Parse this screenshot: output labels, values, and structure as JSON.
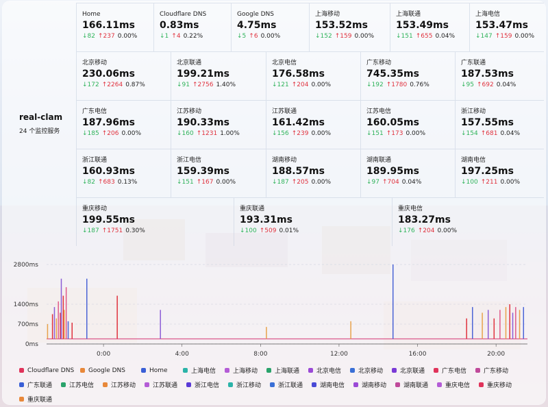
{
  "node": {
    "name": "real-clam",
    "subtitle": "24 个监控服务"
  },
  "rows": [
    [
      {
        "name": "Home",
        "value": "166.11ms",
        "down": "↓82",
        "up": "↑237",
        "pct": "0.00%"
      },
      {
        "name": "Cloudflare DNS",
        "value": "0.83ms",
        "down": "↓1",
        "up": "↑4",
        "pct": "0.22%"
      },
      {
        "name": "Google DNS",
        "value": "4.75ms",
        "down": "↓5",
        "up": "↑6",
        "pct": "0.00%"
      },
      {
        "name": "上海移动",
        "value": "153.52ms",
        "down": "↓152",
        "up": "↑159",
        "pct": "0.00%"
      },
      {
        "name": "上海联通",
        "value": "153.49ms",
        "down": "↓151",
        "up": "↑655",
        "pct": "0.04%"
      },
      {
        "name": "上海电信",
        "value": "153.47ms",
        "down": "↓147",
        "up": "↑159",
        "pct": "0.00%"
      }
    ],
    [
      {
        "name": "北京移动",
        "value": "230.06ms",
        "down": "↓172",
        "up": "↑2264",
        "pct": "0.87%"
      },
      {
        "name": "北京联通",
        "value": "199.21ms",
        "down": "↓91",
        "up": "↑2756",
        "pct": "1.40%"
      },
      {
        "name": "北京电信",
        "value": "176.58ms",
        "down": "↓121",
        "up": "↑204",
        "pct": "0.00%"
      },
      {
        "name": "广东移动",
        "value": "745.35ms",
        "down": "↓192",
        "up": "↑1780",
        "pct": "0.76%"
      },
      {
        "name": "广东联通",
        "value": "187.53ms",
        "down": "↓95",
        "up": "↑692",
        "pct": "0.04%"
      }
    ],
    [
      {
        "name": "广东电信",
        "value": "187.96ms",
        "down": "↓185",
        "up": "↑206",
        "pct": "0.00%"
      },
      {
        "name": "江苏移动",
        "value": "190.33ms",
        "down": "↓160",
        "up": "↑1231",
        "pct": "1.00%"
      },
      {
        "name": "江苏联通",
        "value": "161.42ms",
        "down": "↓156",
        "up": "↑239",
        "pct": "0.00%"
      },
      {
        "name": "江苏电信",
        "value": "160.05ms",
        "down": "↓151",
        "up": "↑173",
        "pct": "0.00%"
      },
      {
        "name": "浙江移动",
        "value": "157.55ms",
        "down": "↓154",
        "up": "↑681",
        "pct": "0.04%"
      }
    ],
    [
      {
        "name": "浙江联通",
        "value": "160.93ms",
        "down": "↓82",
        "up": "↑683",
        "pct": "0.13%"
      },
      {
        "name": "浙江电信",
        "value": "159.39ms",
        "down": "↓151",
        "up": "↑167",
        "pct": "0.00%"
      },
      {
        "name": "湖南移动",
        "value": "188.57ms",
        "down": "↓187",
        "up": "↑205",
        "pct": "0.00%"
      },
      {
        "name": "湖南联通",
        "value": "189.95ms",
        "down": "↓97",
        "up": "↑704",
        "pct": "0.04%"
      },
      {
        "name": "湖南电信",
        "value": "197.25ms",
        "down": "↓100",
        "up": "↑211",
        "pct": "0.00%"
      }
    ],
    [
      {
        "name": "重庆移动",
        "value": "199.55ms",
        "down": "↓187",
        "up": "↑1751",
        "pct": "0.30%"
      },
      {
        "name": "重庆联通",
        "value": "193.31ms",
        "down": "↓100",
        "up": "↑509",
        "pct": "0.01%"
      },
      {
        "name": "重庆电信",
        "value": "183.27ms",
        "down": "↓176",
        "up": "↑204",
        "pct": "0.00%"
      }
    ]
  ],
  "chart_data": {
    "type": "line",
    "ylim": [
      0,
      2800
    ],
    "yticks": [
      "2800ms",
      "1400ms",
      "700ms",
      "0ms"
    ],
    "ytick_values": [
      2800,
      1400,
      700,
      0
    ],
    "xticks": [
      "0:00",
      "4:00",
      "8:00",
      "12:00",
      "16:00",
      "20:00"
    ],
    "xtick_hours": [
      0,
      4,
      8,
      12,
      16,
      20
    ],
    "xlim_hours": [
      -2.9,
      21.6
    ],
    "baseline_ms": 180,
    "spikes": [
      {
        "h": -2.85,
        "v": 700,
        "c": "#e8a24a"
      },
      {
        "h": -2.6,
        "v": 1050,
        "c": "#e0313d"
      },
      {
        "h": -2.5,
        "v": 1300,
        "c": "#8b5cd6"
      },
      {
        "h": -2.4,
        "v": 900,
        "c": "#e8a24a"
      },
      {
        "h": -2.3,
        "v": 1500,
        "c": "#e05a8a"
      },
      {
        "h": -2.2,
        "v": 1100,
        "c": "#e0313d"
      },
      {
        "h": -2.15,
        "v": 2300,
        "c": "#8b5cd6"
      },
      {
        "h": -2.05,
        "v": 1700,
        "c": "#e0313d"
      },
      {
        "h": -2.0,
        "v": 1200,
        "c": "#e8a24a"
      },
      {
        "h": -1.9,
        "v": 2000,
        "c": "#e05a8a"
      },
      {
        "h": -1.8,
        "v": 800,
        "c": "#4a63d6"
      },
      {
        "h": -1.6,
        "v": 750,
        "c": "#e0313d"
      },
      {
        "h": -0.85,
        "v": 2300,
        "c": "#4a63d6"
      },
      {
        "h": 0.7,
        "v": 1700,
        "c": "#e0313d"
      },
      {
        "h": 2.9,
        "v": 1200,
        "c": "#8b5cd6"
      },
      {
        "h": 8.3,
        "v": 600,
        "c": "#e8a24a"
      },
      {
        "h": 12.6,
        "v": 800,
        "c": "#e8a24a"
      },
      {
        "h": 14.75,
        "v": 2800,
        "c": "#4a63d6"
      },
      {
        "h": 18.8,
        "v": 1300,
        "c": "#4a63d6"
      },
      {
        "h": 18.5,
        "v": 900,
        "c": "#e0313d"
      },
      {
        "h": 19.3,
        "v": 1100,
        "c": "#e8a24a"
      },
      {
        "h": 19.6,
        "v": 1200,
        "c": "#8b5cd6"
      },
      {
        "h": 19.9,
        "v": 900,
        "c": "#e0313d"
      },
      {
        "h": 20.2,
        "v": 1200,
        "c": "#e05a8a"
      },
      {
        "h": 20.5,
        "v": 1300,
        "c": "#e8a24a"
      },
      {
        "h": 20.7,
        "v": 1400,
        "c": "#e0313d"
      },
      {
        "h": 20.85,
        "v": 1100,
        "c": "#8b5cd6"
      },
      {
        "h": 21.0,
        "v": 1300,
        "c": "#e05a8a"
      },
      {
        "h": 21.2,
        "v": 1200,
        "c": "#e8a24a"
      },
      {
        "h": 21.4,
        "v": 1300,
        "c": "#4a63d6"
      }
    ]
  },
  "legend": [
    {
      "label": "Cloudflare DNS",
      "color": "#e0335a",
      "wide": true
    },
    {
      "label": "Google DNS",
      "color": "#e8883a",
      "wide": true
    },
    {
      "label": "Home",
      "color": "#3a5fd6"
    },
    {
      "label": "上海电信",
      "color": "#2bb3a8"
    },
    {
      "label": "上海移动",
      "color": "#b45cd6"
    },
    {
      "label": "上海联通",
      "color": "#2aa36b"
    },
    {
      "label": "北京电信",
      "color": "#9b4ad6"
    },
    {
      "label": "北京移动",
      "color": "#3a6fd6"
    },
    {
      "label": "北京联通",
      "color": "#7a3ad6"
    },
    {
      "label": "广东电信",
      "color": "#e0335a"
    },
    {
      "label": "广东移动",
      "color": "#c04a9a"
    },
    {
      "label": "广东联通",
      "color": "#3a5fd6"
    },
    {
      "label": "江苏电信",
      "color": "#2aa36b"
    },
    {
      "label": "江苏移动",
      "color": "#e8883a"
    },
    {
      "label": "江苏联通",
      "color": "#b45cd6"
    },
    {
      "label": "浙江电信",
      "color": "#5a3ad6"
    },
    {
      "label": "浙江移动",
      "color": "#2bb3a8"
    },
    {
      "label": "浙江联通",
      "color": "#3a6fd6"
    },
    {
      "label": "湖南电信",
      "color": "#4a4ad6"
    },
    {
      "label": "湖南移动",
      "color": "#9b4ad6"
    },
    {
      "label": "湖南联通",
      "color": "#c04a9a"
    },
    {
      "label": "重庆电信",
      "color": "#b45cd6"
    },
    {
      "label": "重庆移动",
      "color": "#e0335a"
    },
    {
      "label": "重庆联通",
      "color": "#e8883a"
    }
  ]
}
